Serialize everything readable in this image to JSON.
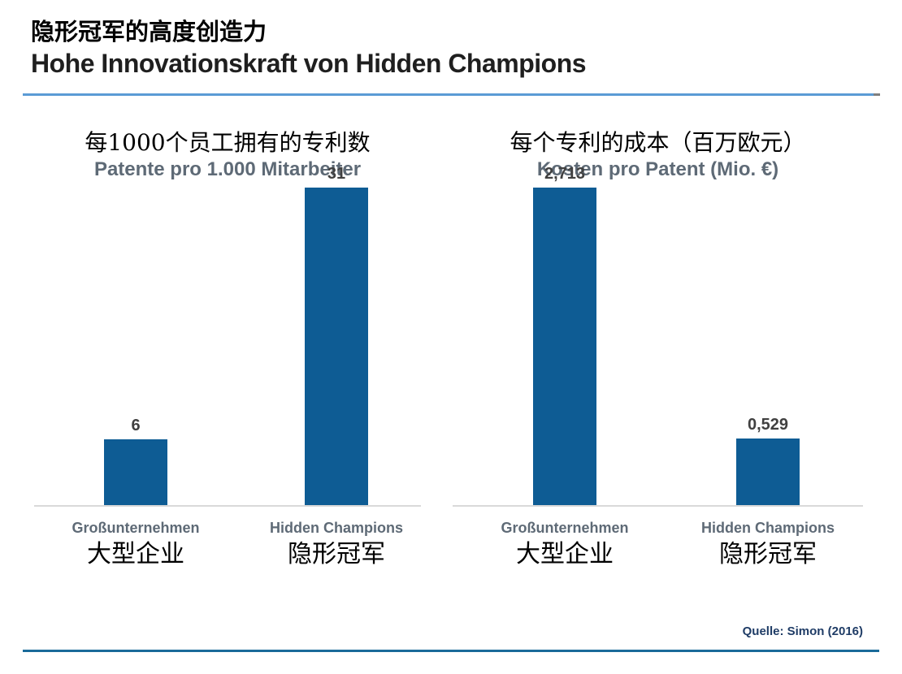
{
  "slide": {
    "title_cn": "隐形冠军的高度创造力",
    "title_de": "Hohe Innovationskraft von Hidden Champions",
    "source": "Quelle: Simon (2016)"
  },
  "colors": {
    "bar": "#0e5c94",
    "top_rule": "#5b9bd5",
    "bottom_rule": "#1a6b9a",
    "axis_line": "#d9d9d9",
    "gray_text": "#5e6a76",
    "value_text": "#404040",
    "source_text": "#1f3c66"
  },
  "chart_data": [
    {
      "type": "bar",
      "title_cn": "每1000个员工拥有的专利数",
      "title_de": "Patente pro 1.000 Mitarbeiter",
      "categories_de": [
        "Großunternehmen",
        "Hidden Champions"
      ],
      "categories_cn": [
        "大型企业",
        "隐形冠军"
      ],
      "values": [
        6,
        31
      ],
      "value_labels": [
        "6",
        "31"
      ],
      "ylabel": "",
      "xlabel": "",
      "ylim": [
        0,
        31
      ],
      "grid": false,
      "legend": false,
      "bar_color": "#0e5c94"
    },
    {
      "type": "bar",
      "title_cn": "每个专利的成本（百万欧元）",
      "title_de": "Kosten pro Patent (Mio. €)",
      "categories_de": [
        "Großunternehmen",
        "Hidden Champions"
      ],
      "categories_cn": [
        "大型企业",
        "隐形冠军"
      ],
      "values": [
        2.713,
        0.529
      ],
      "value_labels": [
        "2,713",
        "0,529"
      ],
      "ylabel": "",
      "xlabel": "",
      "ylim": [
        0,
        2.713
      ],
      "grid": false,
      "legend": false,
      "bar_color": "#0e5c94"
    }
  ]
}
